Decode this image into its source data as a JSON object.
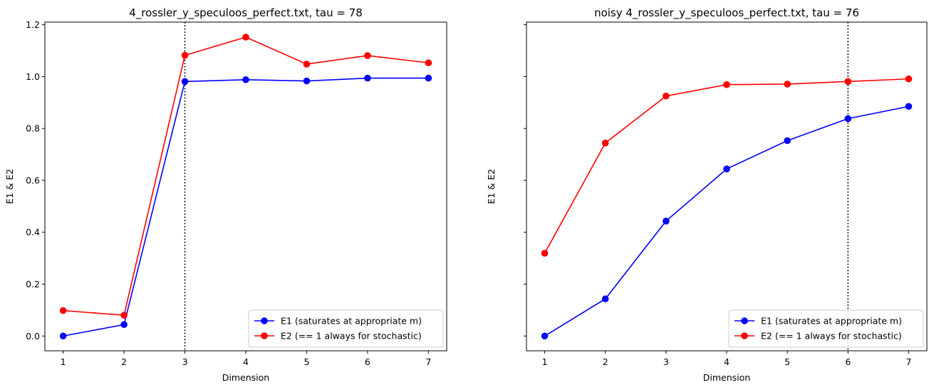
{
  "chart_data": [
    {
      "type": "line",
      "title": "4_rossler_y_speculoos_perfect.txt, tau = 78",
      "xlabel": "Dimension",
      "ylabel": "E1 & E2",
      "x": [
        1,
        2,
        3,
        4,
        5,
        6,
        7
      ],
      "xticks": [
        "1",
        "2",
        "3",
        "4",
        "5",
        "6",
        "7"
      ],
      "yticks": [
        "0.0",
        "0.2",
        "0.4",
        "0.6",
        "0.8",
        "1.0",
        "1.2"
      ],
      "xlim": [
        0.7,
        7.3
      ],
      "ylim": [
        -0.057,
        1.21
      ],
      "vline_x": 3,
      "grid": false,
      "legend_position": "lower-right",
      "series": [
        {
          "name": "E1 (saturates at appropriate m)",
          "color": "#0000ff",
          "values": [
            0.0,
            0.044,
            0.981,
            0.988,
            0.983,
            0.994,
            0.994
          ]
        },
        {
          "name": "E2 (== 1 always for stochastic)",
          "color": "#ff0000",
          "values": [
            0.098,
            0.08,
            1.082,
            1.152,
            1.048,
            1.081,
            1.053
          ]
        }
      ]
    },
    {
      "type": "line",
      "title": "noisy 4_rossler_y_speculoos_perfect.txt, tau = 76",
      "xlabel": "Dimension",
      "ylabel": "E1 & E2",
      "x": [
        1,
        2,
        3,
        4,
        5,
        6,
        7
      ],
      "xticks": [
        "1",
        "2",
        "3",
        "4",
        "5",
        "6",
        "7"
      ],
      "yticks": [],
      "xlim": [
        0.7,
        7.3
      ],
      "ylim": [
        -0.057,
        1.21
      ],
      "vline_x": 6,
      "grid": false,
      "legend_position": "lower-right",
      "series": [
        {
          "name": "E1 (saturates at appropriate m)",
          "color": "#0000ff",
          "values": [
            0.0,
            0.143,
            0.443,
            0.644,
            0.753,
            0.838,
            0.885
          ]
        },
        {
          "name": "E2 (== 1 always for stochastic)",
          "color": "#ff0000",
          "values": [
            0.319,
            0.744,
            0.925,
            0.969,
            0.971,
            0.981,
            0.991
          ]
        }
      ]
    }
  ]
}
